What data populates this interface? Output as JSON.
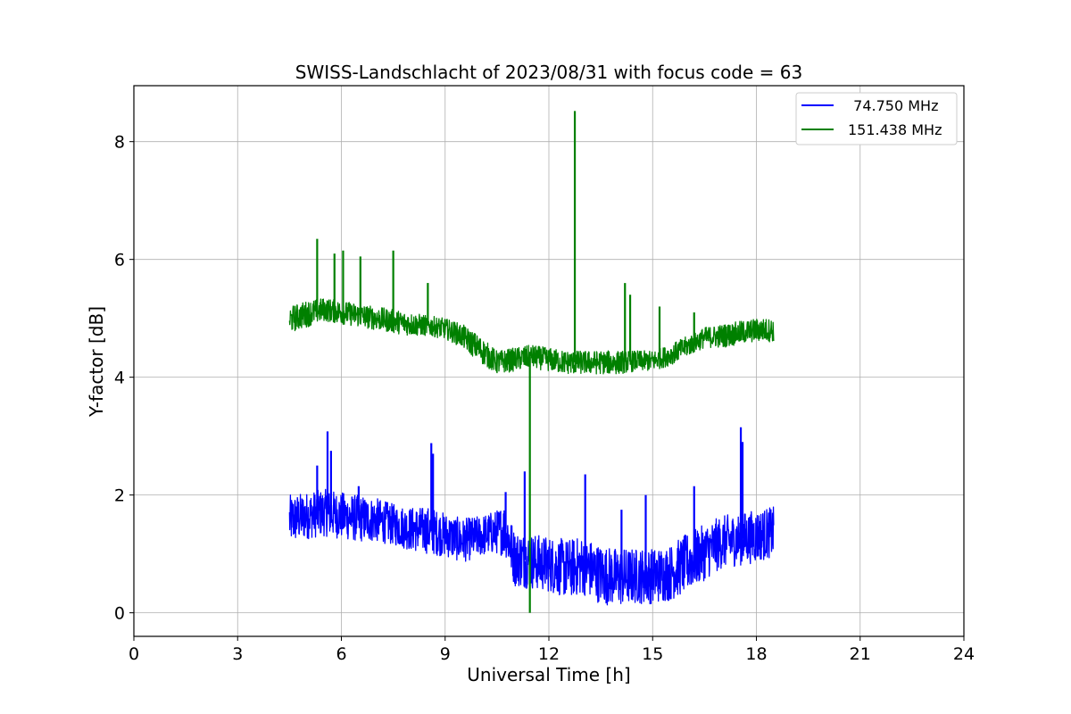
{
  "chart_data": {
    "type": "line",
    "title": "SWISS-Landschlacht of 2023/08/31 with focus code = 63",
    "xlabel": "Universal Time [h]",
    "ylabel": "Y-factor [dB]",
    "xlim": [
      0,
      24
    ],
    "ylim": [
      -0.4,
      8.95
    ],
    "xticks": [
      0,
      3,
      6,
      9,
      12,
      15,
      18,
      21,
      24
    ],
    "yticks": [
      0,
      2,
      4,
      6,
      8
    ],
    "xtick_labels": [
      "0",
      "3",
      "6",
      "9",
      "12",
      "15",
      "18",
      "21",
      "24"
    ],
    "ytick_labels": [
      "0",
      "2",
      "4",
      "6",
      "8"
    ],
    "grid": true,
    "legend_position": "top-right",
    "series": [
      {
        "name": "  74.750 MHz",
        "color": "#0000ff",
        "x": [
          4.5,
          5.0,
          5.5,
          6.0,
          6.5,
          7.0,
          7.5,
          8.0,
          8.5,
          9.0,
          9.5,
          10.0,
          10.5,
          10.75,
          11.0,
          11.5,
          12.0,
          12.5,
          13.0,
          13.5,
          14.0,
          14.5,
          15.0,
          15.5,
          16.0,
          16.5,
          17.0,
          17.5,
          18.0,
          18.5
        ],
        "lower": [
          1.15,
          1.25,
          1.3,
          1.25,
          1.2,
          1.2,
          1.15,
          1.05,
          1.0,
          0.95,
          0.85,
          0.95,
          1.0,
          0.95,
          0.45,
          0.4,
          0.35,
          0.25,
          0.3,
          0.15,
          0.1,
          0.15,
          0.15,
          0.2,
          0.35,
          0.55,
          0.75,
          0.8,
          0.85,
          0.95
        ],
        "upper": [
          2.0,
          2.05,
          2.1,
          2.05,
          2.0,
          1.95,
          1.85,
          1.8,
          1.8,
          1.7,
          1.6,
          1.65,
          1.75,
          1.9,
          1.4,
          1.35,
          1.3,
          1.25,
          1.3,
          1.15,
          1.1,
          1.1,
          1.1,
          1.15,
          1.35,
          1.5,
          1.65,
          1.7,
          1.75,
          1.8
        ],
        "spikes": [
          {
            "x": 5.3,
            "y": 2.5
          },
          {
            "x": 5.6,
            "y": 3.08
          },
          {
            "x": 5.7,
            "y": 2.75
          },
          {
            "x": 6.5,
            "y": 2.15
          },
          {
            "x": 8.6,
            "y": 2.88
          },
          {
            "x": 8.65,
            "y": 2.7
          },
          {
            "x": 10.75,
            "y": 2.05
          },
          {
            "x": 11.3,
            "y": 2.4
          },
          {
            "x": 13.05,
            "y": 2.35
          },
          {
            "x": 14.1,
            "y": 1.75
          },
          {
            "x": 14.8,
            "y": 2.0
          },
          {
            "x": 16.2,
            "y": 2.15
          },
          {
            "x": 17.55,
            "y": 3.15
          },
          {
            "x": 17.6,
            "y": 2.9
          }
        ]
      },
      {
        "name": "151.438 MHz",
        "color": "#008000",
        "x": [
          4.5,
          5.0,
          5.5,
          6.0,
          6.5,
          7.0,
          7.5,
          8.0,
          8.5,
          9.0,
          9.5,
          10.0,
          10.5,
          11.0,
          11.5,
          12.0,
          12.5,
          13.0,
          13.5,
          14.0,
          14.5,
          15.0,
          15.5,
          16.0,
          16.5,
          17.0,
          17.5,
          18.0,
          18.5
        ],
        "lower": [
          4.75,
          4.85,
          4.95,
          4.9,
          4.85,
          4.8,
          4.75,
          4.7,
          4.7,
          4.65,
          4.5,
          4.25,
          4.05,
          4.1,
          4.15,
          4.1,
          4.05,
          4.05,
          4.05,
          4.05,
          4.1,
          4.1,
          4.2,
          4.35,
          4.5,
          4.5,
          4.55,
          4.6,
          4.6
        ],
        "upper": [
          5.2,
          5.3,
          5.35,
          5.3,
          5.25,
          5.2,
          5.15,
          5.1,
          5.05,
          5.0,
          4.9,
          4.7,
          4.45,
          4.5,
          4.55,
          4.5,
          4.45,
          4.45,
          4.45,
          4.45,
          4.45,
          4.45,
          4.55,
          4.7,
          4.85,
          4.9,
          4.95,
          5.0,
          5.0
        ],
        "spikes": [
          {
            "x": 5.3,
            "y": 6.35
          },
          {
            "x": 5.8,
            "y": 6.1
          },
          {
            "x": 6.05,
            "y": 6.15
          },
          {
            "x": 6.55,
            "y": 6.05
          },
          {
            "x": 7.5,
            "y": 6.15
          },
          {
            "x": 8.5,
            "y": 5.6
          },
          {
            "x": 11.45,
            "y": 0.0
          },
          {
            "x": 12.75,
            "y": 8.52
          },
          {
            "x": 14.2,
            "y": 5.6
          },
          {
            "x": 14.35,
            "y": 5.4
          },
          {
            "x": 15.2,
            "y": 5.2
          },
          {
            "x": 16.2,
            "y": 5.1
          }
        ]
      }
    ]
  }
}
